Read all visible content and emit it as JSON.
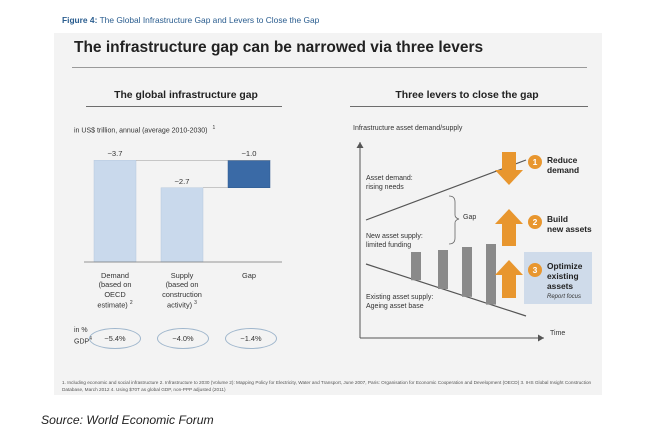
{
  "figure_caption": {
    "label": "Figure 4:",
    "text": "The Global Infrastructure Gap and Levers to Close the Gap"
  },
  "main_title": "The infrastructure gap can be narrowed via three levers",
  "left_panel": {
    "title": "The global infrastructure gap",
    "units": "in US$ trillion, annual (average 2010-2030)",
    "units_footnote": "1",
    "pct_label_line1": "in %",
    "pct_label_line2": "GDP",
    "pct_label_footnote": "4",
    "gdp_shares": [
      "~5.4%",
      "~4.0%",
      "~1.4%"
    ]
  },
  "chart_data": {
    "type": "bar",
    "subtype": "waterfall",
    "categories": [
      "Demand (based on OECD estimate)",
      "Supply (based on construction activity)",
      "Gap"
    ],
    "values": [
      3.7,
      2.7,
      1.0
    ],
    "value_labels": [
      "~3.7",
      "~2.7",
      "~1.0"
    ],
    "category_footnotes": [
      "2",
      "3",
      ""
    ],
    "category_lines": [
      [
        "Demand",
        "(based on",
        "OECD",
        "estimate)"
      ],
      [
        "Supply",
        "(based on",
        "construction",
        "activity)"
      ],
      [
        "Gap"
      ]
    ],
    "gap_base": 2.7,
    "colors": {
      "demand": "#c9d9ec",
      "supply": "#c9d9ec",
      "gap": "#3a6aa6"
    }
  },
  "right_panel": {
    "title": "Three levers to close the gap",
    "y_axis_label": "Infrastructure asset demand/supply",
    "x_axis_label": "Time",
    "asset_demand_label": [
      "Asset demand:",
      "rising needs"
    ],
    "gap_label": "Gap",
    "new_supply_label": [
      "New asset supply:",
      "limited funding"
    ],
    "existing_supply_label": [
      "Existing asset supply:",
      "Ageing asset base"
    ],
    "levers": [
      {
        "number": "1",
        "lines": [
          "Reduce",
          "demand"
        ]
      },
      {
        "number": "2",
        "lines": [
          "Build",
          "new assets"
        ]
      },
      {
        "number": "3",
        "lines": [
          "Optimize",
          "existing",
          "assets"
        ]
      }
    ],
    "report_focus_label": "Report focus",
    "arrow_color": "#e8962e",
    "highlight_color": "#cfdbea"
  },
  "footnote": "1. Including economic and social infrastructure  2. Infrastructure to 2030 (Volume 2): Mapping Policy for Electricity, Water and Transport, June 2007, Paris: Organisation for Economic Cooperation and Development (OECD)  3. IHS Global Insight Construction Database, March 2012  4. Using $70T as global GDP, non-PPP adjusted (2011)",
  "source": "Source: World Economic Forum"
}
